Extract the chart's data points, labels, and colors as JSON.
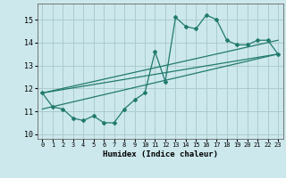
{
  "xlabel": "Humidex (Indice chaleur)",
  "ylabel": "",
  "bg_color": "#cce8ec",
  "grid_color": "#aacccc",
  "line_color": "#217a6e",
  "xlim": [
    -0.5,
    23.5
  ],
  "ylim": [
    9.8,
    15.7
  ],
  "yticks": [
    10,
    11,
    12,
    13,
    14,
    15
  ],
  "xticks": [
    0,
    1,
    2,
    3,
    4,
    5,
    6,
    7,
    8,
    9,
    10,
    11,
    12,
    13,
    14,
    15,
    16,
    17,
    18,
    19,
    20,
    21,
    22,
    23
  ],
  "series1_x": [
    0,
    1,
    2,
    3,
    4,
    5,
    6,
    7,
    8,
    9,
    10,
    11,
    12,
    13,
    14,
    15,
    16,
    17,
    18,
    19,
    20,
    21,
    22,
    23
  ],
  "series1_y": [
    11.8,
    11.2,
    11.1,
    10.7,
    10.6,
    10.8,
    10.5,
    10.5,
    11.1,
    11.5,
    11.8,
    13.6,
    12.3,
    15.1,
    14.7,
    14.6,
    15.2,
    15.0,
    14.1,
    13.9,
    13.9,
    14.1,
    14.1,
    13.5
  ],
  "series2_x": [
    0,
    23
  ],
  "series2_y": [
    11.1,
    13.5
  ],
  "series3_x": [
    0,
    23
  ],
  "series3_y": [
    11.8,
    13.5
  ],
  "series4_x": [
    0,
    23
  ],
  "series4_y": [
    11.8,
    14.1
  ]
}
